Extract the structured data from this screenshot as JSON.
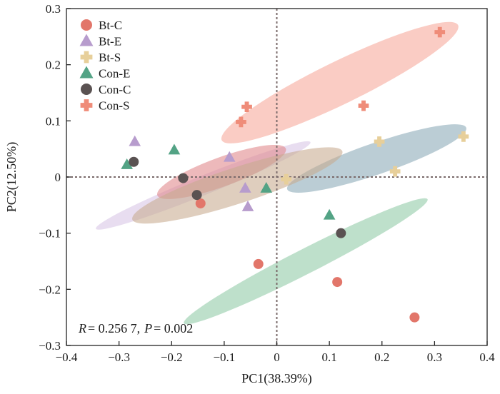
{
  "chart_data": {
    "type": "scatter",
    "xlabel": "PC1(38.39%)",
    "ylabel": "PC2(12.50%)",
    "xlim": [
      -0.4,
      0.4
    ],
    "ylim": [
      -0.3,
      0.3
    ],
    "xticks": [
      -0.4,
      -0.3,
      -0.2,
      -0.1,
      0,
      0.1,
      0.2,
      0.3,
      0.4
    ],
    "yticks": [
      -0.3,
      -0.2,
      -0.1,
      0,
      0.1,
      0.2,
      0.3
    ],
    "xtick_labels": [
      "−0.4",
      "−0.3",
      "−0.2",
      "−0.1",
      "0",
      "0.1",
      "0.2",
      "0.3",
      "0.4"
    ],
    "ytick_labels": [
      "−0.3",
      "−0.2",
      "−0.1",
      "0",
      "0.1",
      "0.2",
      "0.3"
    ],
    "grid": false,
    "reference_lines": {
      "x": 0,
      "y": 0,
      "style": "dotted"
    },
    "legend_position": "top-left",
    "annotation": {
      "r_label": "R",
      "r_text": "= 0.256 7,",
      "p_label": "P",
      "p_text": "= 0.002"
    },
    "series": [
      {
        "name": "Bt-C",
        "marker": "circle",
        "color": "#e2766a",
        "ellipse_color": "#8fcaa6",
        "points": [
          [
            -0.145,
            -0.047
          ],
          [
            -0.035,
            -0.155
          ],
          [
            0.115,
            -0.187
          ],
          [
            0.262,
            -0.25
          ]
        ],
        "ellipse": {
          "cx": 0.055,
          "cy": -0.15,
          "rx": 0.26,
          "ry": 0.022,
          "angle_deg": 27
        }
      },
      {
        "name": "Bt-E",
        "marker": "triangle",
        "color": "#b79ccd",
        "ellipse_color": "#d8c4e6",
        "points": [
          [
            -0.27,
            0.063
          ],
          [
            -0.09,
            0.035
          ],
          [
            -0.06,
            -0.02
          ],
          [
            -0.055,
            -0.053
          ]
        ],
        "ellipse": {
          "cx": -0.14,
          "cy": -0.015,
          "rx": 0.22,
          "ry": 0.017,
          "angle_deg": 22
        }
      },
      {
        "name": "Bt-S",
        "marker": "plus",
        "color": "#e7cf9a",
        "ellipse_color": "#8aa9b6",
        "points": [
          [
            0.018,
            -0.004
          ],
          [
            0.195,
            0.063
          ],
          [
            0.225,
            0.01
          ],
          [
            0.355,
            0.072
          ]
        ],
        "ellipse": {
          "cx": 0.19,
          "cy": 0.033,
          "rx": 0.18,
          "ry": 0.028,
          "angle_deg": 19
        }
      },
      {
        "name": "Con-E",
        "marker": "triangle",
        "color": "#53a385",
        "ellipse_color": "#e0868a",
        "points": [
          [
            -0.285,
            0.022
          ],
          [
            -0.195,
            0.048
          ],
          [
            -0.02,
            -0.02
          ],
          [
            0.1,
            -0.068
          ]
        ],
        "ellipse": {
          "cx": -0.105,
          "cy": 0.009,
          "rx": 0.13,
          "ry": 0.026,
          "angle_deg": 20
        }
      },
      {
        "name": "Con-C",
        "marker": "circle",
        "color": "#5a5252",
        "ellipse_color": "#c8ab8f",
        "points": [
          [
            -0.272,
            0.027
          ],
          [
            -0.178,
            -0.002
          ],
          [
            -0.152,
            -0.032
          ],
          [
            0.122,
            -0.1
          ]
        ],
        "ellipse": {
          "cx": -0.075,
          "cy": -0.015,
          "rx": 0.21,
          "ry": 0.032,
          "angle_deg": 18
        }
      },
      {
        "name": "Con-S",
        "marker": "plus",
        "color": "#ef8c79",
        "ellipse_color": "#f6a79a",
        "points": [
          [
            -0.068,
            0.098
          ],
          [
            -0.057,
            0.125
          ],
          [
            0.165,
            0.127
          ],
          [
            0.31,
            0.258
          ]
        ],
        "ellipse": {
          "cx": 0.12,
          "cy": 0.168,
          "rx": 0.25,
          "ry": 0.038,
          "angle_deg": 26
        }
      }
    ]
  }
}
